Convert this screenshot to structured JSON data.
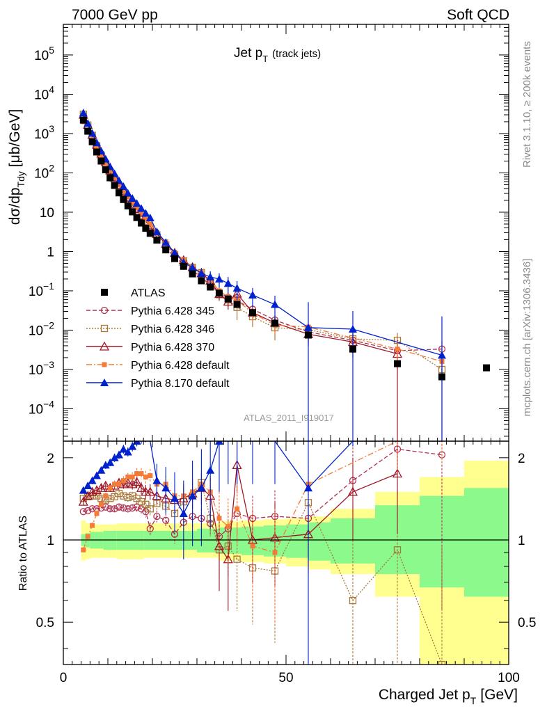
{
  "header": {
    "left": "7000 GeV pp",
    "right": "Soft QCD"
  },
  "side_labels": {
    "rivet": "Rivet 3.1.10, ≥ 200k events",
    "mcplots": "mcplots.cern.ch [arXiv:1306.3436]"
  },
  "chart_data": {
    "type": "scatter",
    "title_main": "Jet p",
    "title_sub": "T",
    "title_extra": "(track jets)",
    "analysis_id": "ATLAS_2011_I919017",
    "ylabel_main": "dσ/dp",
    "ylabel_sub": "Tdy",
    "ylabel_unit": "[μb/GeV]",
    "xlabel_main": "Charged Jet p",
    "xlabel_sub": "T",
    "xlabel_unit": "[GeV]",
    "ratio_ylabel": "Ratio to ATLAS",
    "xlim": [
      0,
      100
    ],
    "ylim": [
      1.5e-05,
      600000
    ],
    "ratio_ylim": [
      0.35,
      2.3
    ],
    "x_ticks": [
      "0",
      "50",
      "100"
    ],
    "x_tick_values": [
      0,
      50,
      100
    ],
    "y_ticks": [
      {
        "value": 100000,
        "base": "10",
        "exp": "5"
      },
      {
        "value": 10000,
        "base": "10",
        "exp": "4"
      },
      {
        "value": 1000,
        "base": "10",
        "exp": "3"
      },
      {
        "value": 100,
        "base": "10",
        "exp": "2"
      },
      {
        "value": 10,
        "base": "10",
        "exp": ""
      },
      {
        "value": 1,
        "base": "1",
        "exp": ""
      },
      {
        "value": 0.1,
        "base": "10",
        "exp": "−1"
      },
      {
        "value": 0.01,
        "base": "10",
        "exp": "−2"
      },
      {
        "value": 0.001,
        "base": "10",
        "exp": "−3"
      },
      {
        "value": 0.0001,
        "base": "10",
        "exp": "−4"
      }
    ],
    "ratio_ticks": [
      {
        "value": 2,
        "label": "2"
      },
      {
        "value": 1,
        "label": "1"
      },
      {
        "value": 0.5,
        "label": "0.5"
      }
    ],
    "ratio_bands": [
      {
        "x0": 4,
        "x1": 5,
        "yellow": [
          0.84,
          1.18
        ],
        "green": [
          0.95,
          1.05
        ]
      },
      {
        "x0": 5,
        "x1": 6,
        "yellow": [
          0.85,
          1.15
        ],
        "green": [
          0.94,
          1.06
        ]
      },
      {
        "x0": 6,
        "x1": 9,
        "yellow": [
          0.86,
          1.14
        ],
        "green": [
          0.93,
          1.07
        ]
      },
      {
        "x0": 9,
        "x1": 12,
        "yellow": [
          0.86,
          1.14
        ],
        "green": [
          0.92,
          1.08
        ]
      },
      {
        "x0": 12,
        "x1": 18,
        "yellow": [
          0.85,
          1.15
        ],
        "green": [
          0.92,
          1.08
        ]
      },
      {
        "x0": 18,
        "x1": 30,
        "yellow": [
          0.86,
          1.15
        ],
        "green": [
          0.92,
          1.08
        ]
      },
      {
        "x0": 30,
        "x1": 35,
        "yellow": [
          0.86,
          1.15
        ],
        "green": [
          0.9,
          1.1
        ]
      },
      {
        "x0": 35,
        "x1": 40,
        "yellow": [
          0.84,
          1.17
        ],
        "green": [
          0.89,
          1.11
        ]
      },
      {
        "x0": 40,
        "x1": 45,
        "yellow": [
          0.83,
          1.18
        ],
        "green": [
          0.88,
          1.12
        ]
      },
      {
        "x0": 45,
        "x1": 50,
        "yellow": [
          0.82,
          1.19
        ],
        "green": [
          0.87,
          1.13
        ]
      },
      {
        "x0": 50,
        "x1": 55,
        "yellow": [
          0.8,
          1.2
        ],
        "green": [
          0.86,
          1.14
        ]
      },
      {
        "x0": 55,
        "x1": 60,
        "yellow": [
          0.78,
          1.22
        ],
        "green": [
          0.84,
          1.16
        ]
      },
      {
        "x0": 60,
        "x1": 70,
        "yellow": [
          0.75,
          1.3
        ],
        "green": [
          0.82,
          1.2
        ]
      },
      {
        "x0": 70,
        "x1": 80,
        "yellow": [
          0.62,
          1.5
        ],
        "green": [
          0.75,
          1.34
        ]
      },
      {
        "x0": 80,
        "x1": 90,
        "yellow": [
          0.35,
          1.7
        ],
        "green": [
          0.67,
          1.45
        ]
      },
      {
        "x0": 90,
        "x1": 100,
        "yellow": [
          0.35,
          1.95
        ],
        "green": [
          0.62,
          1.55
        ]
      }
    ],
    "series": [
      {
        "name": "ATLAS",
        "color": "#000000",
        "marker": "square-filled",
        "dash": "none",
        "x": [
          4.5,
          5.5,
          6.5,
          7.5,
          8.5,
          9.5,
          10.5,
          11.5,
          12.5,
          13.5,
          14.5,
          15.5,
          16.5,
          17.5,
          18.5,
          19.5,
          21,
          23,
          25,
          27,
          29,
          31,
          33,
          35,
          37,
          39,
          42.5,
          47.5,
          55,
          65,
          75,
          85,
          95
        ],
        "y": [
          2200,
          1150,
          620,
          340,
          200,
          120,
          75,
          48,
          31,
          21,
          14.5,
          10.2,
          7.3,
          5.3,
          3.9,
          2.9,
          1.95,
          1.1,
          0.66,
          0.42,
          0.27,
          0.18,
          0.125,
          0.087,
          0.062,
          0.045,
          0.028,
          0.015,
          0.0075,
          0.0033,
          0.0014,
          0.00065,
          0.0011
        ],
        "yerr": [
          0,
          0,
          0,
          0,
          0,
          0,
          0,
          0,
          0,
          0,
          0,
          0,
          0,
          0,
          0,
          0,
          0,
          0,
          0,
          0,
          0,
          0,
          0,
          0,
          0,
          0,
          0,
          0,
          0,
          0,
          0,
          0,
          0
        ]
      },
      {
        "name": "Pythia 6.428 345",
        "color": "#b03050",
        "marker": "circle-open",
        "dash": "6,3",
        "x": [
          4.5,
          5.5,
          6.5,
          7.5,
          8.5,
          9.5,
          10.5,
          11.5,
          12.5,
          13.5,
          14.5,
          15.5,
          16.5,
          17.5,
          18.5,
          19.5,
          21,
          23,
          25,
          27,
          29,
          31,
          33,
          35,
          37,
          39,
          42.5,
          47.5,
          55,
          65,
          75,
          85
        ],
        "ratio": [
          1.27,
          1.28,
          1.3,
          1.3,
          1.31,
          1.32,
          1.3,
          1.3,
          1.32,
          1.31,
          1.3,
          1.31,
          1.32,
          1.3,
          1.27,
          1.1,
          1.22,
          1.18,
          1.05,
          1.16,
          1.22,
          1.2,
          1.15,
          1.03,
          1.1,
          1.25,
          1.2,
          1.22,
          1.2,
          1.65,
          2.15,
          2.05
        ],
        "rerr": [
          0.02,
          0.02,
          0.02,
          0.02,
          0.02,
          0.02,
          0.03,
          0.03,
          0.03,
          0.03,
          0.04,
          0.04,
          0.05,
          0.05,
          0.06,
          0.06,
          0.06,
          0.07,
          0.08,
          0.08,
          0.1,
          0.1,
          0.12,
          0.15,
          0.2,
          0.22,
          0.25,
          0.3,
          0.4,
          0.6,
          0.7,
          1.5
        ]
      },
      {
        "name": "Pythia 6.428 346",
        "color": "#a8783a",
        "marker": "square-open",
        "dash": "2,2",
        "x": [
          4.5,
          5.5,
          6.5,
          7.5,
          8.5,
          9.5,
          10.5,
          11.5,
          12.5,
          13.5,
          14.5,
          15.5,
          16.5,
          17.5,
          18.5,
          19.5,
          21,
          23,
          25,
          27,
          29,
          31,
          33,
          35,
          37,
          39,
          42.5,
          47.5,
          55,
          65,
          75,
          85
        ],
        "ratio": [
          1.42,
          1.44,
          1.45,
          1.45,
          1.42,
          1.4,
          1.42,
          1.44,
          1.48,
          1.45,
          1.43,
          1.45,
          1.42,
          1.38,
          1.35,
          1.3,
          1.36,
          1.33,
          1.25,
          1.38,
          1.45,
          1.62,
          1.2,
          0.92,
          0.95,
          0.85,
          0.79,
          0.77,
          1.37,
          0.6,
          0.92,
          0.35
        ],
        "rerr": [
          0.03,
          0.03,
          0.03,
          0.03,
          0.03,
          0.03,
          0.04,
          0.04,
          0.04,
          0.04,
          0.05,
          0.05,
          0.06,
          0.06,
          0.07,
          0.07,
          0.07,
          0.08,
          0.09,
          0.1,
          0.12,
          0.14,
          0.16,
          0.2,
          0.22,
          0.3,
          0.3,
          0.35,
          0.5,
          0.4,
          0.6,
          0.6
        ]
      },
      {
        "name": "Pythia 6.428 370",
        "color": "#a01828",
        "marker": "triangle-open",
        "dash": "none",
        "x": [
          4.5,
          5.5,
          6.5,
          7.5,
          8.5,
          9.5,
          10.5,
          11.5,
          12.5,
          13.5,
          14.5,
          15.5,
          16.5,
          17.5,
          18.5,
          19.5,
          21,
          23,
          25,
          27,
          29,
          31,
          33,
          35,
          37,
          39,
          42.5,
          47.5,
          55,
          65,
          75
        ],
        "ratio": [
          1.38,
          1.45,
          1.5,
          1.52,
          1.55,
          1.58,
          1.55,
          1.58,
          1.62,
          1.6,
          1.62,
          1.6,
          1.63,
          1.55,
          1.5,
          1.5,
          1.45,
          1.42,
          1.4,
          1.42,
          1.48,
          1.55,
          1.45,
          0.95,
          0.85,
          1.88,
          1.0,
          1.02,
          1.05,
          1.5,
          1.75
        ],
        "rerr": [
          0.04,
          0.04,
          0.04,
          0.04,
          0.04,
          0.05,
          0.05,
          0.05,
          0.06,
          0.06,
          0.07,
          0.07,
          0.08,
          0.08,
          0.09,
          0.1,
          0.1,
          0.12,
          0.13,
          0.15,
          0.18,
          0.2,
          0.25,
          0.3,
          0.3,
          0.4,
          0.3,
          0.35,
          0.3,
          0.5,
          0.7
        ]
      },
      {
        "name": "Pythia 6.428 default",
        "color": "#f47a38",
        "marker": "square-filled-small",
        "dash": "8,3,2,3",
        "x": [
          4.5,
          5.5,
          6.5,
          7.5,
          8.5,
          9.5,
          10.5,
          11.5,
          12.5,
          13.5,
          14.5,
          15.5,
          16.5,
          17.5,
          18.5,
          19.5,
          21,
          23,
          25,
          27,
          29,
          31,
          33,
          35,
          37,
          39,
          42.5,
          47.5,
          55,
          75,
          85
        ],
        "ratio": [
          0.92,
          1.03,
          1.13,
          1.25,
          1.35,
          1.45,
          1.55,
          1.6,
          1.6,
          1.65,
          1.7,
          1.7,
          1.75,
          1.75,
          1.7,
          1.72,
          1.6,
          1.6,
          1.45,
          1.45,
          1.5,
          1.6,
          1.5,
          1.2,
          1.12,
          1.3,
          0.95,
          0.9,
          1.6,
          2.4,
          2.5
        ],
        "rerr": [
          0.02,
          0.02,
          0.03,
          0.03,
          0.03,
          0.04,
          0.04,
          0.05,
          0.05,
          0.06,
          0.06,
          0.07,
          0.08,
          0.08,
          0.09,
          0.1,
          0.1,
          0.12,
          0.13,
          0.15,
          0.18,
          0.2,
          0.22,
          0.3,
          0.3,
          0.35,
          0.35,
          0.4,
          0.45,
          0.6,
          0.6
        ]
      },
      {
        "name": "Pythia 8.170 default",
        "color": "#0022cc",
        "marker": "triangle-filled",
        "dash": "none",
        "x": [
          4.5,
          5.5,
          6.5,
          7.5,
          8.5,
          9.5,
          10.5,
          11.5,
          12.5,
          13.5,
          14.5,
          15.5,
          16.5,
          17.5,
          18.5,
          19.5,
          21,
          23,
          25,
          27,
          29,
          31,
          33,
          35,
          37,
          39,
          42.5,
          47.5,
          55,
          65,
          85
        ],
        "ratio": [
          1.52,
          1.58,
          1.65,
          1.72,
          1.8,
          1.88,
          1.92,
          2.0,
          2.05,
          2.15,
          2.1,
          2.2,
          2.3,
          2.35,
          2.4,
          2.5,
          1.65,
          1.55,
          1.42,
          1.25,
          1.45,
          1.55,
          1.8,
          2.3,
          2.5,
          2.6,
          2.8,
          3.0,
          1.55,
          3.2,
          3.5
        ],
        "rerr": [
          0.04,
          0.04,
          0.05,
          0.05,
          0.05,
          0.06,
          0.06,
          0.07,
          0.07,
          0.08,
          0.08,
          0.09,
          0.1,
          0.1,
          0.12,
          0.13,
          0.25,
          0.3,
          0.35,
          0.4,
          0.5,
          0.6,
          0.7,
          0.8,
          0.9,
          1.0,
          1.2,
          1.4,
          1.6,
          1.0,
          1.0
        ]
      }
    ],
    "main_series_y": {
      "Pythia 6.428 345": [
        2800,
        1470,
        800,
        440,
        262,
        158,
        98,
        62,
        41,
        27.5,
        18.8,
        13.4,
        9.6,
        6.9,
        5.0,
        3.2,
        2.4,
        1.3,
        0.69,
        0.49,
        0.33,
        0.22,
        0.14,
        0.09,
        0.068,
        0.056,
        0.034,
        0.018,
        0.009,
        0.0055,
        0.003,
        0.0033
      ],
      "Pythia 6.428 346": [
        3100,
        1650,
        900,
        490,
        284,
        168,
        106,
        69,
        46,
        30.5,
        20.7,
        14.8,
        10.4,
        7.3,
        5.3,
        3.8,
        2.65,
        1.46,
        0.82,
        0.58,
        0.39,
        0.29,
        0.15,
        0.08,
        0.059,
        0.038,
        0.022,
        0.0115,
        0.0103,
        0.006,
        0.0055,
        0.001
      ],
      "Pythia 6.428 370": [
        3000,
        1670,
        930,
        520,
        310,
        190,
        116,
        76,
        50,
        33.6,
        23.5,
        16.3,
        11.9,
        8.2,
        5.85,
        4.35,
        2.8,
        1.56,
        0.92,
        0.6,
        0.4,
        0.28,
        0.18,
        0.083,
        0.053,
        0.085,
        0.028,
        0.0153,
        0.0079,
        0.005,
        0.0025
      ],
      "Pythia 6.428 default": [
        2000,
        1180,
        700,
        425,
        270,
        174,
        116,
        77,
        50,
        34.6,
        24.6,
        17.3,
        12.8,
        9.3,
        6.6,
        5.0,
        3.1,
        1.76,
        0.96,
        0.61,
        0.4,
        0.29,
        0.19,
        0.1,
        0.07,
        0.058,
        0.027,
        0.0135,
        0.012,
        0.0033,
        0.0016
      ],
      "Pythia 8.170 default": [
        3350,
        1820,
        1020,
        585,
        360,
        225,
        144,
        96,
        63.5,
        45,
        30.5,
        22.5,
        16.8,
        12.5,
        9.4,
        7.2,
        3.2,
        1.7,
        0.94,
        0.53,
        0.39,
        0.28,
        0.225,
        0.2,
        0.155,
        0.117,
        0.078,
        0.045,
        0.0116,
        0.0106,
        0.0023
      ]
    },
    "main_series_yerr": {
      "Pythia 6.428 345": [
        0,
        0,
        0,
        0,
        0,
        0,
        0,
        0,
        0,
        0,
        0,
        0,
        0,
        0,
        0,
        0.1,
        0.1,
        0.08,
        0.06,
        0.05,
        0.04,
        0.03,
        0.03,
        0.025,
        0.02,
        0.02,
        0.01,
        0.006,
        0.004,
        0.003,
        0.002,
        0.002
      ],
      "Pythia 6.428 346": [
        0,
        0,
        0,
        0,
        0,
        0,
        0,
        0,
        0,
        0,
        0,
        0,
        0,
        0,
        0,
        0.1,
        0.1,
        0.08,
        0.06,
        0.05,
        0.04,
        0.03,
        0.03,
        0.025,
        0.02,
        0.02,
        0.01,
        0.006,
        0.004,
        0.003,
        0.003,
        0.001
      ],
      "Pythia 6.428 370": [
        0,
        0,
        0,
        0,
        0,
        0,
        0,
        0,
        0,
        0,
        0,
        0,
        0,
        0,
        0,
        0.1,
        0.1,
        0.08,
        0.06,
        0.05,
        0.04,
        0.03,
        0.03,
        0.025,
        0.02,
        0.03,
        0.01,
        0.006,
        0.004,
        0.003,
        0.003
      ],
      "Pythia 6.428 default": [
        0,
        0,
        0,
        0,
        0,
        0,
        0,
        0,
        0,
        0,
        0,
        0,
        0,
        0,
        0,
        0.1,
        0.1,
        0.08,
        0.06,
        0.05,
        0.04,
        0.03,
        0.03,
        0.025,
        0.02,
        0.02,
        0.01,
        0.006,
        0.004,
        0.002,
        0.001
      ],
      "Pythia 8.170 default": [
        0,
        0,
        0,
        0,
        0,
        0,
        0,
        0,
        0,
        0,
        0,
        0,
        0,
        0,
        0,
        0.2,
        0.3,
        0.25,
        0.2,
        0.15,
        0.12,
        0.1,
        0.09,
        0.08,
        0.07,
        0.06,
        0.04,
        0.03,
        0.04,
        0.02,
        0.02
      ]
    },
    "legend_placement": "left"
  }
}
